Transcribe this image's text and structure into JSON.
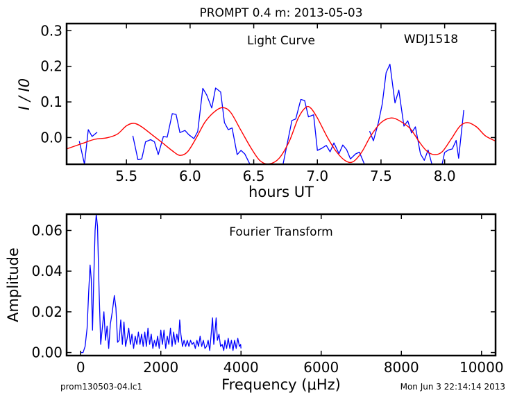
{
  "figure": {
    "title": "PROMPT 0.4 m:  2013-05-03",
    "footer_left": "prom130503-04.lc1",
    "footer_right": "Mon Jun  3 22:14:14 2013"
  },
  "chart_data": [
    {
      "type": "line",
      "annotations": [
        "Light Curve",
        "WDJ1518"
      ],
      "xlabel": "hours UT",
      "ylabel": "I / I0",
      "xlim": [
        5.03,
        8.4
      ],
      "ylim": [
        -0.075,
        0.32
      ],
      "xticks": [
        5.5,
        6.0,
        6.5,
        7.0,
        7.5,
        8.0
      ],
      "xtick_labels": [
        "5.5",
        "6.0",
        "6.5",
        "7.0",
        "7.5",
        "8.0"
      ],
      "yticks": [
        0.0,
        0.1,
        0.2,
        0.3
      ],
      "ytick_labels": [
        "0.0",
        "0.1",
        "0.2",
        "0.3"
      ],
      "grid": false,
      "series": [
        {
          "color": "#0000ff",
          "segments": [
            [
              [
                5.13,
                -0.01
              ],
              [
                5.17,
                -0.075
              ],
              [
                5.2,
                0.022
              ],
              [
                5.23,
                0.003
              ],
              [
                5.27,
                0.015
              ]
            ],
            [
              [
                5.55,
                0.005
              ],
              [
                5.59,
                -0.062
              ],
              [
                5.62,
                -0.06
              ],
              [
                5.65,
                -0.012
              ],
              [
                5.69,
                -0.006
              ],
              [
                5.72,
                -0.012
              ],
              [
                5.75,
                -0.048
              ],
              [
                5.79,
                0.003
              ],
              [
                5.82,
                0.001
              ],
              [
                5.86,
                0.067
              ],
              [
                5.89,
                0.065
              ],
              [
                5.92,
                0.014
              ],
              [
                5.96,
                0.02
              ],
              [
                5.99,
                0.008
              ],
              [
                6.03,
                -0.003
              ],
              [
                6.06,
                0.017
              ],
              [
                6.1,
                0.138
              ],
              [
                6.13,
                0.12
              ],
              [
                6.17,
                0.083
              ],
              [
                6.2,
                0.139
              ],
              [
                6.24,
                0.128
              ],
              [
                6.27,
                0.042
              ],
              [
                6.3,
                0.022
              ],
              [
                6.33,
                0.027
              ],
              [
                6.37,
                -0.048
              ],
              [
                6.4,
                -0.036
              ],
              [
                6.43,
                -0.046
              ],
              [
                6.47,
                -0.075
              ]
            ],
            [
              [
                6.73,
                -0.075
              ],
              [
                6.77,
                -0.005
              ],
              [
                6.8,
                0.048
              ],
              [
                6.83,
                0.052
              ],
              [
                6.87,
                0.107
              ],
              [
                6.9,
                0.104
              ],
              [
                6.93,
                0.058
              ],
              [
                6.97,
                0.064
              ],
              [
                7.0,
                -0.036
              ],
              [
                7.03,
                -0.031
              ],
              [
                7.07,
                -0.022
              ],
              [
                7.1,
                -0.04
              ],
              [
                7.13,
                -0.015
              ],
              [
                7.17,
                -0.045
              ],
              [
                7.2,
                -0.021
              ],
              [
                7.23,
                -0.034
              ],
              [
                7.26,
                -0.06
              ],
              [
                7.3,
                -0.046
              ],
              [
                7.33,
                -0.041
              ],
              [
                7.37,
                -0.075
              ]
            ],
            [
              [
                7.41,
                0.018
              ],
              [
                7.44,
                -0.009
              ],
              [
                7.48,
                0.043
              ],
              [
                7.51,
                0.095
              ],
              [
                7.54,
                0.182
              ],
              [
                7.57,
                0.206
              ],
              [
                7.61,
                0.097
              ],
              [
                7.64,
                0.133
              ],
              [
                7.68,
                0.032
              ],
              [
                7.71,
                0.047
              ],
              [
                7.74,
                0.013
              ],
              [
                7.77,
                0.03
              ],
              [
                7.81,
                -0.046
              ],
              [
                7.84,
                -0.064
              ],
              [
                7.87,
                -0.035
              ],
              [
                7.9,
                -0.075
              ]
            ],
            [
              [
                7.98,
                -0.075
              ],
              [
                8.0,
                -0.042
              ],
              [
                8.03,
                -0.035
              ],
              [
                8.06,
                -0.032
              ],
              [
                8.09,
                -0.008
              ],
              [
                8.11,
                -0.058
              ],
              [
                8.15,
                0.077
              ]
            ]
          ]
        },
        {
          "color": "#ff0000",
          "smooth": true,
          "points": [
            [
              5.03,
              -0.032
            ],
            [
              5.15,
              -0.017
            ],
            [
              5.25,
              -0.005
            ],
            [
              5.35,
              -0.0005
            ],
            [
              5.43,
              0.01
            ],
            [
              5.5,
              0.033
            ],
            [
              5.56,
              0.04
            ],
            [
              5.62,
              0.03
            ],
            [
              5.7,
              0.008
            ],
            [
              5.78,
              -0.014
            ],
            [
              5.86,
              -0.037
            ],
            [
              5.92,
              -0.05
            ],
            [
              5.98,
              -0.04
            ],
            [
              6.05,
              0.0
            ],
            [
              6.12,
              0.045
            ],
            [
              6.2,
              0.075
            ],
            [
              6.26,
              0.084
            ],
            [
              6.32,
              0.07
            ],
            [
              6.4,
              0.02
            ],
            [
              6.48,
              -0.03
            ],
            [
              6.55,
              -0.065
            ],
            [
              6.62,
              -0.074
            ],
            [
              6.7,
              -0.058
            ],
            [
              6.78,
              -0.01
            ],
            [
              6.85,
              0.055
            ],
            [
              6.91,
              0.085
            ],
            [
              6.95,
              0.082
            ],
            [
              7.0,
              0.055
            ],
            [
              7.08,
              0.0
            ],
            [
              7.15,
              -0.04
            ],
            [
              7.22,
              -0.065
            ],
            [
              7.28,
              -0.068
            ],
            [
              7.35,
              -0.04
            ],
            [
              7.42,
              0.005
            ],
            [
              7.5,
              0.042
            ],
            [
              7.58,
              0.055
            ],
            [
              7.65,
              0.046
            ],
            [
              7.73,
              0.025
            ],
            [
              7.8,
              -0.012
            ],
            [
              7.86,
              -0.038
            ],
            [
              7.92,
              -0.048
            ],
            [
              7.98,
              -0.04
            ],
            [
              8.05,
              -0.005
            ],
            [
              8.12,
              0.032
            ],
            [
              8.18,
              0.042
            ],
            [
              8.25,
              0.03
            ],
            [
              8.32,
              0.005
            ],
            [
              8.4,
              -0.01
            ]
          ]
        }
      ]
    },
    {
      "type": "line",
      "annotations": [
        "Fourier Transform"
      ],
      "xlabel": "Frequency (μHz)",
      "ylabel": "Amplitude",
      "xlim": [
        -350,
        10350
      ],
      "ylim": [
        -0.0015,
        0.068
      ],
      "xticks": [
        0,
        2000,
        4000,
        6000,
        8000,
        10000
      ],
      "xtick_labels": [
        "0",
        "2000",
        "4000",
        "6000",
        "8000",
        "10000"
      ],
      "yticks": [
        0.0,
        0.02,
        0.04,
        0.06
      ],
      "ytick_labels": [
        "0.00",
        "0.02",
        "0.04",
        "0.06"
      ],
      "grid": false,
      "series": [
        {
          "color": "#0000ff",
          "points": [
            [
              0,
              0.0
            ],
            [
              60,
              0.0
            ],
            [
              110,
              0.003
            ],
            [
              160,
              0.012
            ],
            [
              200,
              0.03
            ],
            [
              235,
              0.043
            ],
            [
              265,
              0.036
            ],
            [
              295,
              0.011
            ],
            [
              325,
              0.035
            ],
            [
              360,
              0.06
            ],
            [
              390,
              0.068
            ],
            [
              420,
              0.062
            ],
            [
              460,
              0.03
            ],
            [
              500,
              0.004
            ],
            [
              540,
              0.012
            ],
            [
              580,
              0.02
            ],
            [
              620,
              0.006
            ],
            [
              660,
              0.013
            ],
            [
              700,
              0.002
            ],
            [
              740,
              0.014
            ],
            [
              790,
              0.02
            ],
            [
              840,
              0.028
            ],
            [
              880,
              0.022
            ],
            [
              920,
              0.005
            ],
            [
              960,
              0.006
            ],
            [
              1000,
              0.016
            ],
            [
              1040,
              0.004
            ],
            [
              1080,
              0.015
            ],
            [
              1120,
              0.003
            ],
            [
              1160,
              0.007
            ],
            [
              1200,
              0.012
            ],
            [
              1240,
              0.004
            ],
            [
              1280,
              0.009
            ],
            [
              1320,
              0.002
            ],
            [
              1360,
              0.008
            ],
            [
              1400,
              0.004
            ],
            [
              1440,
              0.01
            ],
            [
              1480,
              0.004
            ],
            [
              1520,
              0.009
            ],
            [
              1560,
              0.003
            ],
            [
              1600,
              0.01
            ],
            [
              1640,
              0.003
            ],
            [
              1680,
              0.012
            ],
            [
              1720,
              0.004
            ],
            [
              1760,
              0.009
            ],
            [
              1800,
              0.002
            ],
            [
              1840,
              0.006
            ],
            [
              1880,
              0.003
            ],
            [
              1920,
              0.008
            ],
            [
              1960,
              0.002
            ],
            [
              2000,
              0.011
            ],
            [
              2040,
              0.004
            ],
            [
              2080,
              0.011
            ],
            [
              2120,
              0.002
            ],
            [
              2160,
              0.008
            ],
            [
              2200,
              0.004
            ],
            [
              2240,
              0.012
            ],
            [
              2280,
              0.003
            ],
            [
              2320,
              0.01
            ],
            [
              2360,
              0.004
            ],
            [
              2400,
              0.009
            ],
            [
              2440,
              0.005
            ],
            [
              2470,
              0.016
            ],
            [
              2500,
              0.009
            ],
            [
              2540,
              0.003
            ],
            [
              2580,
              0.006
            ],
            [
              2620,
              0.003
            ],
            [
              2660,
              0.006
            ],
            [
              2700,
              0.003
            ],
            [
              2740,
              0.006
            ],
            [
              2780,
              0.004
            ],
            [
              2820,
              0.005
            ],
            [
              2860,
              0.002
            ],
            [
              2900,
              0.006
            ],
            [
              2940,
              0.003
            ],
            [
              2980,
              0.008
            ],
            [
              3020,
              0.003
            ],
            [
              3060,
              0.006
            ],
            [
              3100,
              0.002
            ],
            [
              3140,
              0.003
            ],
            [
              3180,
              0.006
            ],
            [
              3220,
              0.001
            ],
            [
              3260,
              0.01
            ],
            [
              3290,
              0.017
            ],
            [
              3320,
              0.004
            ],
            [
              3350,
              0.01
            ],
            [
              3380,
              0.017
            ],
            [
              3410,
              0.006
            ],
            [
              3450,
              0.009
            ],
            [
              3490,
              0.003
            ],
            [
              3530,
              0.004
            ],
            [
              3570,
              0.001
            ],
            [
              3600,
              0.006
            ],
            [
              3640,
              0.002
            ],
            [
              3680,
              0.007
            ],
            [
              3720,
              0.002
            ],
            [
              3760,
              0.006
            ],
            [
              3800,
              0.001
            ],
            [
              3840,
              0.006
            ],
            [
              3880,
              0.002
            ],
            [
              3920,
              0.007
            ],
            [
              3960,
              0.003
            ],
            [
              3990,
              0.004
            ],
            [
              4000,
              0.002
            ]
          ]
        }
      ]
    }
  ]
}
